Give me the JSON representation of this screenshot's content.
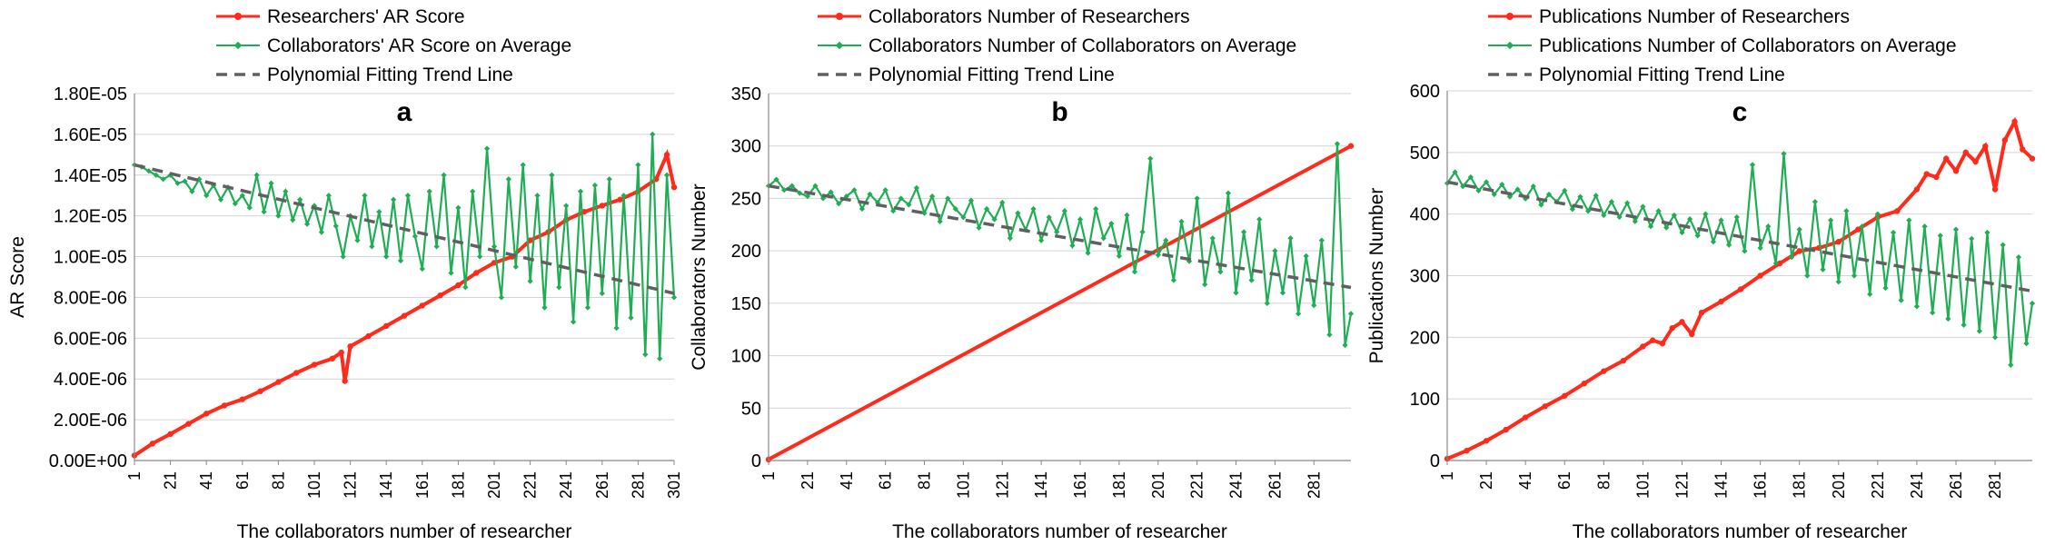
{
  "chart_data": [
    {
      "type": "line",
      "panel_label": "a",
      "xlabel": "The collaborators number of researcher",
      "ylabel": "AR Score",
      "x_range": [
        1,
        301
      ],
      "x_ticks": [
        "1",
        "21",
        "41",
        "61",
        "81",
        "101",
        "121",
        "141",
        "161",
        "181",
        "201",
        "221",
        "241",
        "261",
        "281",
        "301"
      ],
      "ylim": [
        0,
        1.8e-05
      ],
      "y_ticks": [
        "0.00E+00",
        "2.00E-06",
        "4.00E-06",
        "6.00E-06",
        "8.00E-06",
        "1.00E-05",
        "1.20E-05",
        "1.40E-05",
        "1.60E-05",
        "1.80E-05"
      ],
      "grid": "horizontal",
      "legend_position": "top",
      "series": [
        {
          "name": "Researchers' AR Score",
          "color": "#ff2a1a",
          "marker": "circle",
          "x": [
            1,
            11,
            21,
            31,
            41,
            51,
            61,
            71,
            81,
            91,
            101,
            111,
            116,
            118,
            121,
            131,
            141,
            151,
            161,
            171,
            181,
            191,
            201,
            211,
            221,
            231,
            241,
            251,
            261,
            271,
            281,
            291,
            297,
            301
          ],
          "y": [
            2.5e-07,
            8.3e-07,
            1.3e-06,
            1.8e-06,
            2.3e-06,
            2.7e-06,
            3e-06,
            3.4e-06,
            3.85e-06,
            4.3e-06,
            4.7e-06,
            5e-06,
            5.3e-06,
            3.9e-06,
            5.6e-06,
            6.1e-06,
            6.6e-06,
            7.1e-06,
            7.6e-06,
            8.1e-06,
            8.6e-06,
            9.2e-06,
            9.7e-06,
            1e-05,
            1.08e-05,
            1.12e-05,
            1.18e-05,
            1.22e-05,
            1.25e-05,
            1.28e-05,
            1.32e-05,
            1.38e-05,
            1.5e-05,
            1.34e-05
          ]
        },
        {
          "name": "Collaborators' AR Score on Average",
          "color": "#1fae55",
          "marker": "diamond",
          "x": [
            1,
            5,
            9,
            13,
            17,
            21,
            25,
            29,
            33,
            37,
            41,
            45,
            49,
            53,
            57,
            61,
            65,
            69,
            73,
            77,
            81,
            85,
            89,
            93,
            97,
            101,
            105,
            109,
            113,
            117,
            121,
            125,
            129,
            133,
            137,
            141,
            145,
            149,
            153,
            157,
            161,
            165,
            169,
            173,
            177,
            181,
            185,
            189,
            193,
            197,
            201,
            205,
            209,
            213,
            217,
            221,
            225,
            229,
            233,
            237,
            241,
            245,
            249,
            253,
            257,
            261,
            265,
            269,
            273,
            277,
            281,
            285,
            289,
            293,
            297,
            301
          ],
          "y": [
            1.45e-05,
            1.44e-05,
            1.42e-05,
            1.4e-05,
            1.38e-05,
            1.4e-05,
            1.36e-05,
            1.37e-05,
            1.32e-05,
            1.38e-05,
            1.3e-05,
            1.35e-05,
            1.28e-05,
            1.34e-05,
            1.26e-05,
            1.3e-05,
            1.24e-05,
            1.4e-05,
            1.22e-05,
            1.36e-05,
            1.2e-05,
            1.32e-05,
            1.18e-05,
            1.28e-05,
            1.16e-05,
            1.25e-05,
            1.12e-05,
            1.3e-05,
            1.15e-05,
            1e-05,
            1.2e-05,
            1.08e-05,
            1.3e-05,
            1.05e-05,
            1.22e-05,
            1e-05,
            1.28e-05,
            9.8e-06,
            1.3e-05,
            1.1e-05,
            9.4e-06,
            1.32e-05,
            1.05e-05,
            1.4e-05,
            9.2e-06,
            1.24e-05,
            8.5e-06,
            1.32e-05,
            1e-05,
            1.53e-05,
            1.05e-05,
            8e-06,
            1.38e-05,
            9.5e-06,
            1.45e-05,
            8.8e-06,
            1.3e-05,
            7.5e-06,
            1.4e-05,
            8.5e-06,
            1.25e-05,
            6.8e-06,
            1.32e-05,
            7.5e-06,
            1.35e-05,
            8.2e-06,
            1.38e-05,
            6.5e-06,
            1.3e-05,
            7e-06,
            1.45e-05,
            5.2e-06,
            1.6e-05,
            5e-06,
            1.4e-05,
            8e-06
          ]
        },
        {
          "name": "Polynomial Fitting Trend Line",
          "color": "#606060",
          "style": "dashed",
          "x": [
            1,
            301
          ],
          "y": [
            1.45e-05,
            8.2e-06
          ]
        }
      ]
    },
    {
      "type": "line",
      "panel_label": "b",
      "xlabel": "The collaborators number of researcher",
      "ylabel": "Collaborators Number",
      "x_range": [
        1,
        300
      ],
      "x_ticks": [
        "1",
        "21",
        "41",
        "61",
        "81",
        "101",
        "121",
        "141",
        "161",
        "181",
        "201",
        "221",
        "241",
        "261",
        "281"
      ],
      "ylim": [
        0,
        350
      ],
      "y_ticks": [
        "0",
        "50",
        "100",
        "150",
        "200",
        "250",
        "300",
        "350"
      ],
      "grid": "horizontal",
      "legend_position": "top",
      "series": [
        {
          "name": "Collaborators Number of Researchers",
          "color": "#ff2a1a",
          "marker": "circle",
          "x": [
            1,
            300
          ],
          "y": [
            1,
            300
          ]
        },
        {
          "name": "Collaborators Number of Collaborators on Average",
          "color": "#1fae55",
          "marker": "diamond",
          "x": [
            1,
            5,
            9,
            13,
            17,
            21,
            25,
            29,
            33,
            37,
            41,
            45,
            49,
            53,
            57,
            61,
            65,
            69,
            73,
            77,
            81,
            85,
            89,
            93,
            97,
            101,
            105,
            109,
            113,
            117,
            121,
            125,
            129,
            133,
            137,
            141,
            145,
            149,
            153,
            157,
            161,
            165,
            169,
            173,
            177,
            181,
            185,
            189,
            193,
            197,
            201,
            205,
            209,
            213,
            217,
            221,
            225,
            229,
            233,
            237,
            241,
            245,
            249,
            253,
            257,
            261,
            265,
            269,
            273,
            277,
            281,
            285,
            289,
            293,
            297,
            300
          ],
          "y": [
            262,
            268,
            258,
            262,
            255,
            252,
            262,
            250,
            256,
            245,
            252,
            258,
            240,
            254,
            246,
            258,
            238,
            250,
            244,
            260,
            236,
            252,
            228,
            250,
            240,
            232,
            248,
            222,
            240,
            230,
            246,
            212,
            236,
            220,
            240,
            210,
            232,
            218,
            238,
            205,
            230,
            198,
            240,
            212,
            226,
            195,
            234,
            180,
            218,
            288,
            196,
            210,
            172,
            228,
            190,
            250,
            168,
            212,
            180,
            255,
            160,
            218,
            172,
            230,
            150,
            200,
            160,
            212,
            140,
            195,
            148,
            210,
            120,
            302,
            110,
            140
          ]
        },
        {
          "name": "Polynomial Fitting Trend Line",
          "color": "#606060",
          "style": "dashed",
          "x": [
            1,
            300
          ],
          "y": [
            262,
            165
          ]
        }
      ]
    },
    {
      "type": "line",
      "panel_label": "c",
      "xlabel": "The collaborators number of researcher",
      "ylabel": "Publications Number",
      "x_range": [
        1,
        300
      ],
      "x_ticks": [
        "1",
        "21",
        "41",
        "61",
        "81",
        "101",
        "121",
        "141",
        "161",
        "181",
        "201",
        "221",
        "241",
        "261",
        "281"
      ],
      "ylim": [
        0,
        600
      ],
      "y_ticks": [
        "0",
        "100",
        "200",
        "300",
        "400",
        "500",
        "600"
      ],
      "grid": "horizontal",
      "legend_position": "top",
      "series": [
        {
          "name": "Publications Number of Researchers",
          "color": "#ff2a1a",
          "marker": "circle",
          "x": [
            1,
            11,
            21,
            31,
            41,
            51,
            61,
            71,
            81,
            91,
            101,
            106,
            111,
            116,
            121,
            126,
            131,
            141,
            151,
            161,
            171,
            181,
            191,
            201,
            211,
            221,
            231,
            241,
            246,
            251,
            256,
            261,
            266,
            271,
            276,
            281,
            286,
            291,
            295,
            300
          ],
          "y": [
            3,
            16,
            32,
            50,
            70,
            88,
            105,
            125,
            145,
            162,
            185,
            195,
            190,
            215,
            225,
            205,
            240,
            258,
            278,
            300,
            320,
            340,
            345,
            355,
            375,
            395,
            405,
            440,
            465,
            460,
            490,
            470,
            500,
            485,
            510,
            440,
            520,
            550,
            505,
            490
          ]
        },
        {
          "name": "Publications Number of Collaborators on Average",
          "color": "#1fae55",
          "marker": "diamond",
          "x": [
            1,
            5,
            9,
            13,
            17,
            21,
            25,
            29,
            33,
            37,
            41,
            45,
            49,
            53,
            57,
            61,
            65,
            69,
            73,
            77,
            81,
            85,
            89,
            93,
            97,
            101,
            105,
            109,
            113,
            117,
            121,
            125,
            129,
            133,
            137,
            141,
            145,
            149,
            153,
            157,
            161,
            165,
            169,
            173,
            177,
            181,
            185,
            189,
            193,
            197,
            201,
            205,
            209,
            213,
            217,
            221,
            225,
            229,
            233,
            237,
            241,
            245,
            249,
            253,
            257,
            261,
            265,
            269,
            273,
            277,
            281,
            285,
            289,
            293,
            297,
            300
          ],
          "y": [
            450,
            468,
            445,
            460,
            438,
            452,
            432,
            448,
            428,
            440,
            425,
            445,
            415,
            432,
            420,
            438,
            408,
            428,
            405,
            430,
            398,
            420,
            395,
            418,
            388,
            412,
            380,
            405,
            378,
            398,
            370,
            392,
            365,
            400,
            355,
            390,
            350,
            395,
            340,
            480,
            345,
            380,
            320,
            498,
            330,
            375,
            300,
            420,
            310,
            390,
            290,
            405,
            300,
            380,
            270,
            400,
            280,
            370,
            260,
            390,
            250,
            380,
            240,
            365,
            230,
            375,
            220,
            360,
            210,
            370,
            200,
            350,
            155,
            330,
            190,
            255
          ]
        },
        {
          "name": "Polynomial Fitting Trend Line",
          "color": "#606060",
          "style": "dashed",
          "x": [
            1,
            300
          ],
          "y": [
            452,
            275
          ]
        }
      ]
    }
  ]
}
